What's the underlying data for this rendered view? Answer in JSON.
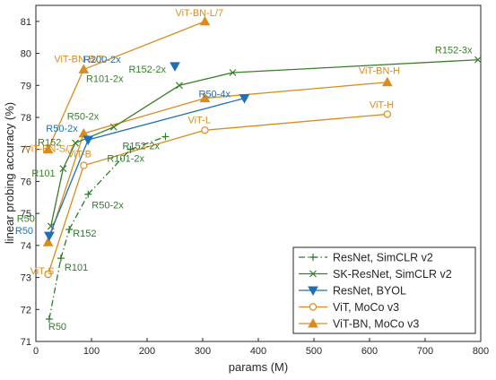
{
  "chart_data": {
    "type": "line",
    "title": "",
    "xlabel": "params (M)",
    "ylabel": "linear probing accuracy (%)",
    "xlim": [
      0,
      800
    ],
    "ylim": [
      71,
      81.5
    ],
    "xticks": [
      0,
      100,
      200,
      300,
      400,
      500,
      600,
      700,
      800
    ],
    "yticks": [
      71,
      72,
      73,
      74,
      75,
      76,
      77,
      78,
      79,
      80,
      81
    ],
    "grid": false,
    "legend_position": "bottom-right",
    "series": [
      {
        "name": "ResNet, SimCLR v2",
        "color": "#2f7a2f",
        "marker": "plus",
        "line": "dashdot",
        "points": [
          {
            "x": 24,
            "y": 71.7,
            "label": "R50"
          },
          {
            "x": 45,
            "y": 73.6,
            "label": "R101"
          },
          {
            "x": 60,
            "y": 74.5,
            "label": "R152"
          },
          {
            "x": 94,
            "y": 75.6,
            "label": "R50-2x"
          },
          {
            "x": 170,
            "y": 77.0,
            "label": "R101-2x"
          },
          {
            "x": 233,
            "y": 77.4,
            "label": "R152-2x"
          }
        ]
      },
      {
        "name": "SK-ResNet, SimCLR v2",
        "color": "#3a7d2a",
        "marker": "x",
        "line": "solid",
        "points": [
          {
            "x": 27,
            "y": 74.6,
            "label": "R50"
          },
          {
            "x": 49,
            "y": 76.4,
            "label": "R101"
          },
          {
            "x": 71,
            "y": 77.2,
            "label": "R152"
          },
          {
            "x": 140,
            "y": 77.7,
            "label": "R50-2x"
          },
          {
            "x": 258,
            "y": 79.0,
            "label": "R101-2x"
          },
          {
            "x": 354,
            "y": 79.4,
            "label": "R152-2x"
          },
          {
            "x": 795,
            "y": 79.8,
            "label": "R152-3x"
          }
        ]
      },
      {
        "name": "ResNet, BYOL",
        "color": "#1f6fb5",
        "marker": "triangle-down",
        "line": "solid",
        "points": [
          {
            "x": 24,
            "y": 74.3,
            "label": "R50"
          },
          {
            "x": 94,
            "y": 77.3,
            "label": "R50-2x"
          },
          {
            "x": 250,
            "y": 79.6,
            "label": "R200-2x"
          },
          {
            "x": 375,
            "y": 78.6,
            "label": "R50-4x"
          }
        ],
        "path_order": [
          "R50",
          "R50-2x",
          "R50-4x"
        ]
      },
      {
        "name": "ViT, MoCo v3",
        "color": "#d98c1f",
        "marker": "circle",
        "line": "solid",
        "points": [
          {
            "x": 22,
            "y": 73.1,
            "label": "ViT-S"
          },
          {
            "x": 86,
            "y": 76.5,
            "label": "ViT-B"
          },
          {
            "x": 304,
            "y": 77.6,
            "label": "ViT-L"
          },
          {
            "x": 632,
            "y": 78.1,
            "label": "ViT-H"
          }
        ]
      },
      {
        "name": "ViT-BN, MoCo v3",
        "color": "#d98c1f",
        "marker": "triangle-up",
        "line": "solid",
        "points": [
          {
            "x": 22,
            "y": 74.1,
            "label": ""
          },
          {
            "x": 22,
            "y": 77.0,
            "label": "ViT-BN-S/7"
          },
          {
            "x": 86,
            "y": 79.5,
            "label": "ViT-BN-B/7"
          },
          {
            "x": 304,
            "y": 81.0,
            "label": "ViT-BN-L/7"
          },
          {
            "x": 86,
            "y": 77.5,
            "label": ""
          },
          {
            "x": 304,
            "y": 78.6,
            "label": ""
          },
          {
            "x": 632,
            "y": 79.1,
            "label": "ViT-BN-H"
          }
        ],
        "segments": [
          [
            0,
            4
          ],
          [
            4,
            5
          ],
          [
            5,
            6
          ],
          [
            1,
            2
          ],
          [
            2,
            3
          ]
        ]
      }
    ]
  }
}
